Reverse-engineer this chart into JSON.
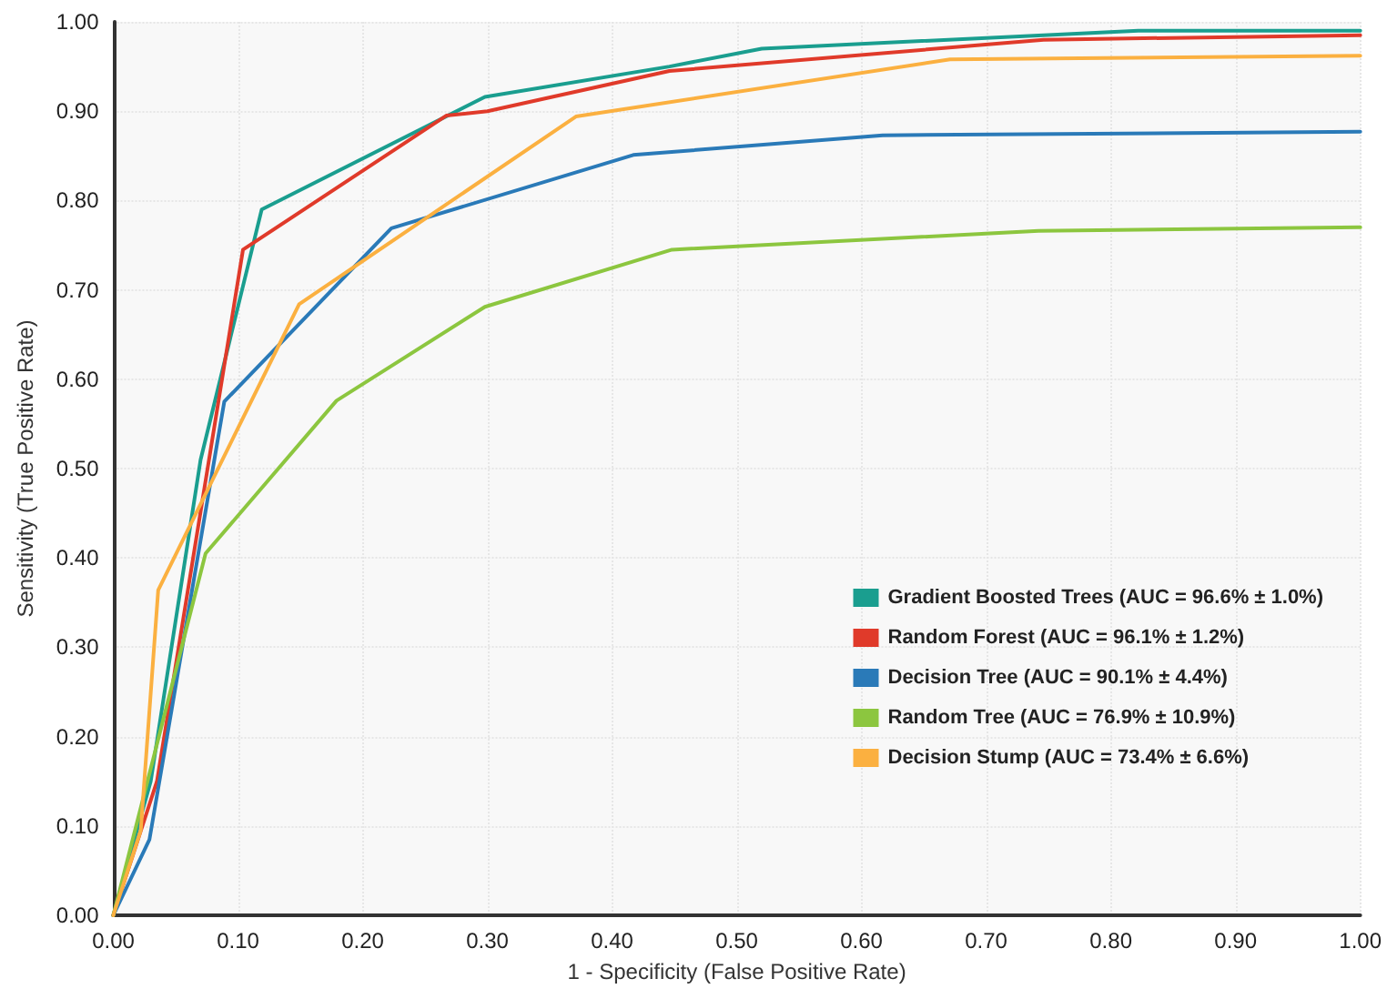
{
  "chart_data": {
    "type": "line",
    "xlabel": "1 - Specificity (False Positive Rate)",
    "ylabel": "Sensitivity (True Positive Rate)",
    "xlim": [
      0,
      1
    ],
    "ylim": [
      0,
      1
    ],
    "xticks": [
      {
        "value": 0,
        "label": "0.00"
      },
      {
        "value": 0.1,
        "label": "0.10"
      },
      {
        "value": 0.2,
        "label": "0.20"
      },
      {
        "value": 0.3,
        "label": "0.30"
      },
      {
        "value": 0.4,
        "label": "0.40"
      },
      {
        "value": 0.5,
        "label": "0.50"
      },
      {
        "value": 0.6,
        "label": "0.60"
      },
      {
        "value": 0.7,
        "label": "0.70"
      },
      {
        "value": 0.8,
        "label": "0.80"
      },
      {
        "value": 0.9,
        "label": "0.90"
      },
      {
        "value": 1,
        "label": "1.00"
      }
    ],
    "yticks": [
      {
        "value": 0,
        "label": "0.00"
      },
      {
        "value": 0.1,
        "label": "0.10"
      },
      {
        "value": 0.2,
        "label": "0.20"
      },
      {
        "value": 0.3,
        "label": "0.30"
      },
      {
        "value": 0.4,
        "label": "0.40"
      },
      {
        "value": 0.5,
        "label": "0.50"
      },
      {
        "value": 0.6,
        "label": "0.60"
      },
      {
        "value": 0.7,
        "label": "0.70"
      },
      {
        "value": 0.8,
        "label": "0.80"
      },
      {
        "value": 0.9,
        "label": "0.90"
      },
      {
        "value": 1,
        "label": "1.00"
      }
    ],
    "grid": true,
    "legend": "right",
    "marker": "none",
    "line_style": "solid",
    "series": [
      {
        "name": "Gradient Boosted Trees (AUC = 96.6% ± 1.0%)",
        "color": "#1a9e8f",
        "x": [
          0,
          0.03,
          0.07,
          0.119,
          0.298,
          0.446,
          0.52,
          0.822,
          1
        ],
        "values": [
          0,
          0.15,
          0.51,
          0.79,
          0.916,
          0.95,
          0.97,
          0.99,
          0.99
        ]
      },
      {
        "name": "Random Forest (AUC = 96.1% ± 1.2%)",
        "color": "#e03a2a",
        "x": [
          0,
          0.035,
          0.104,
          0.267,
          0.3,
          0.446,
          0.746,
          1
        ],
        "values": [
          0,
          0.15,
          0.745,
          0.895,
          0.9,
          0.945,
          0.98,
          0.985
        ]
      },
      {
        "name": "Decision Tree (AUC = 90.1% ± 4.4%)",
        "color": "#2a7ab8",
        "x": [
          0,
          0.029,
          0.089,
          0.223,
          0.417,
          0.617,
          1
        ],
        "values": [
          0,
          0.085,
          0.575,
          0.769,
          0.851,
          0.873,
          0.877
        ]
      },
      {
        "name": "Random Tree (AUC = 76.9% ± 10.9%)",
        "color": "#8cc63f",
        "x": [
          0,
          0.074,
          0.179,
          0.298,
          0.448,
          0.742,
          1
        ],
        "values": [
          0,
          0.405,
          0.576,
          0.681,
          0.745,
          0.766,
          0.77
        ]
      },
      {
        "name": "Decision Stump (AUC = 73.4% ± 6.6%)",
        "color": "#fbb040",
        "x": [
          0,
          0.022,
          0.036,
          0.149,
          0.371,
          0.671,
          1
        ],
        "values": [
          0,
          0.095,
          0.364,
          0.684,
          0.894,
          0.958,
          0.962
        ]
      }
    ]
  }
}
